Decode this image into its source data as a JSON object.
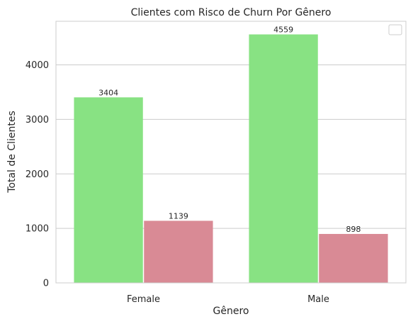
{
  "chart_data": {
    "type": "bar",
    "title": "Clientes com Risco de Churn Por Gênero",
    "xlabel": "Gênero",
    "ylabel": "Total de Clientes",
    "categories": [
      "Female",
      "Male"
    ],
    "series": [
      {
        "values": [
          3404,
          4559
        ],
        "color": "#88e283",
        "value_labels": [
          "3404",
          "4559"
        ]
      },
      {
        "values": [
          1139,
          898
        ],
        "color": "#d98a95",
        "value_labels": [
          "1139",
          "898"
        ]
      }
    ],
    "ylim": [
      0,
      4800
    ],
    "yticks": [
      0,
      1000,
      2000,
      3000,
      4000
    ],
    "ytick_labels": [
      "0",
      "1000",
      "2000",
      "3000",
      "4000"
    ],
    "grid": true,
    "legend": {
      "placement": "top-right",
      "entries": []
    }
  }
}
